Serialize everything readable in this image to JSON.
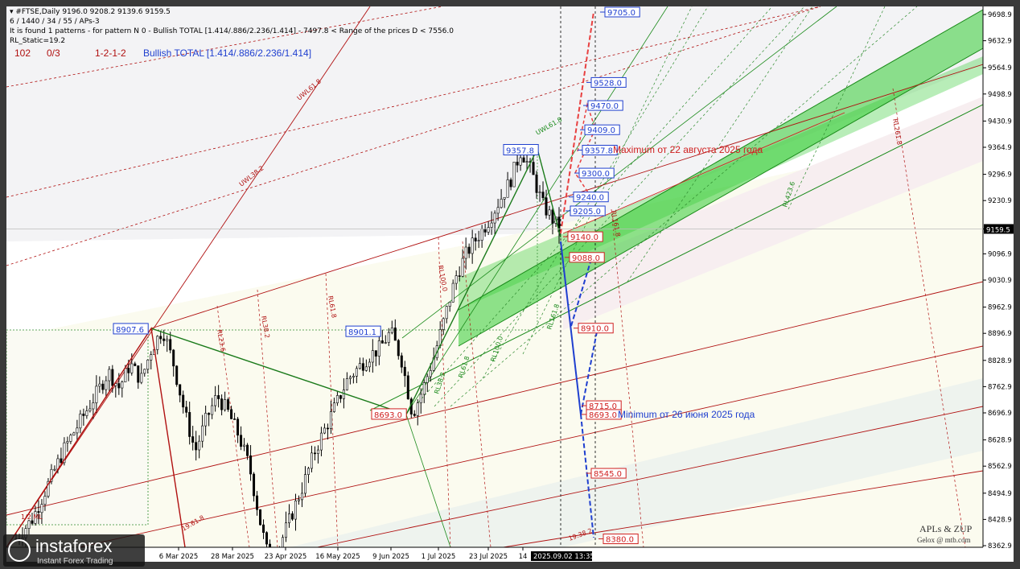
{
  "header": {
    "symbol_line": "▾ #FTSE,Daily  9196.0 9208.2 9139.6 9159.5",
    "params_line": "6 / 1440 / 34 / 55 / APs-3",
    "pattern_line": "It is found 1 patterns  -  for pattern N 0 - Bullish TOTAL [1.414/.886/2.236/1.414] - 7497.8 < Range of the prices D < 7556.0",
    "rl_static": "RL_Static=19.2",
    "counter": "102",
    "ratio": "0/3",
    "sequence": "1-2-1-2",
    "pattern_name": "Bullish TOTAL [1.414/.886/2.236/1.414]"
  },
  "annotations": {
    "maximum": "Maximum от 22 августа 2025 года",
    "minimum": "Minimum от 26 июня 2025 года",
    "credit_title": "APLs & ZUP",
    "credit_sub": "Gelox @ mtb.com",
    "current_time": "2025.09.02 13:35"
  },
  "branding": {
    "name": "instaforex",
    "tagline": "Instant Forex Trading"
  },
  "colors": {
    "bull_channel": "#33cc33",
    "red_lines": "#b01010",
    "blue_projection": "#1f3fcf",
    "red_projection": "#e84040",
    "green_lines": "#1a8a1a",
    "candle_up": "#000000",
    "price_tag": "#000000"
  },
  "chart_data": {
    "type": "candlestick",
    "symbol": "#FTSE",
    "timeframe": "Daily",
    "ylim": [
      8362.9,
      9698.9
    ],
    "y_ticks": [
      9698.9,
      9632.9,
      9564.9,
      9498.9,
      9430.9,
      9364.9,
      9296.9,
      9230.9,
      9159.5,
      9096.9,
      9030.9,
      8962.9,
      8896.9,
      8828.9,
      8762.9,
      8696.9,
      8628.9,
      8562.9,
      8494.9,
      8428.9,
      8362.9
    ],
    "current_price": 9159.5,
    "x_ticks": [
      "6 Mar 2025",
      "28 Mar 2025",
      "23 Apr 2025",
      "16 May 2025",
      "9 Jun 2025",
      "1 Jul 2025",
      "23 Jul 2025",
      "14"
    ],
    "price_path": [
      [
        0,
        8380
      ],
      [
        0.03,
        8430
      ],
      [
        0.06,
        8520
      ],
      [
        0.09,
        8610
      ],
      [
        0.12,
        8680
      ],
      [
        0.15,
        8750
      ],
      [
        0.17,
        8800
      ],
      [
        0.19,
        8760
      ],
      [
        0.21,
        8820
      ],
      [
        0.23,
        8780
      ],
      [
        0.25,
        8860
      ],
      [
        0.27,
        8907.6
      ],
      [
        0.29,
        8820
      ],
      [
        0.31,
        8700
      ],
      [
        0.33,
        8600
      ],
      [
        0.35,
        8680
      ],
      [
        0.37,
        8740
      ],
      [
        0.39,
        8700
      ],
      [
        0.41,
        8640
      ],
      [
        0.43,
        8560
      ],
      [
        0.45,
        8420
      ],
      [
        0.47,
        8300
      ],
      [
        0.49,
        8380
      ],
      [
        0.51,
        8450
      ],
      [
        0.53,
        8520
      ],
      [
        0.55,
        8600
      ],
      [
        0.57,
        8660
      ],
      [
        0.59,
        8720
      ],
      [
        0.61,
        8780
      ],
      [
        0.63,
        8810
      ],
      [
        0.65,
        8840
      ],
      [
        0.67,
        8860
      ],
      [
        0.69,
        8901.1
      ],
      [
        0.71,
        8830
      ],
      [
        0.73,
        8693.0
      ],
      [
        0.75,
        8760
      ],
      [
        0.77,
        8840
      ],
      [
        0.79,
        8940
      ],
      [
        0.81,
        9040
      ],
      [
        0.83,
        9100
      ],
      [
        0.85,
        9140
      ],
      [
        0.87,
        9180
      ],
      [
        0.89,
        9230
      ],
      [
        0.91,
        9280
      ],
      [
        0.93,
        9357.8
      ],
      [
        0.95,
        9300
      ],
      [
        0.97,
        9220
      ],
      [
        0.99,
        9180
      ],
      [
        1.0,
        9159.5
      ]
    ],
    "swing_points": [
      {
        "label": "8907.6",
        "value": 8907.6,
        "role": "high"
      },
      {
        "label": "8901.1",
        "value": 8901.1,
        "role": "high"
      },
      {
        "label": "8693.0",
        "value": 8693.0,
        "role": "low"
      },
      {
        "label": "9357.8",
        "value": 9357.8,
        "role": "high"
      }
    ],
    "target_levels_up": [
      9705.0,
      9528.0,
      9470.0,
      9409.0,
      9357.8,
      9300.0,
      9240.0,
      9205.0
    ],
    "target_levels_down": [
      9140.0,
      9088.0,
      8910.0,
      8715.0,
      8693.0,
      8545.0,
      8380.0
    ],
    "line_labels": [
      "UWL61.8",
      "UWL38.2",
      "UWL61.8",
      "RL100.0",
      "RL61.8",
      "RL38.2",
      "RL23.6",
      "RL161.8",
      "RL261.8",
      "RL423.6",
      "RL100.0",
      "RL61.8",
      "RL38.2",
      "RL161.8",
      "1/2 ML",
      "1/2 ML",
      "1/2 ML",
      "19.61.8",
      "19.38.2"
    ],
    "grid": false,
    "legend": "none"
  }
}
